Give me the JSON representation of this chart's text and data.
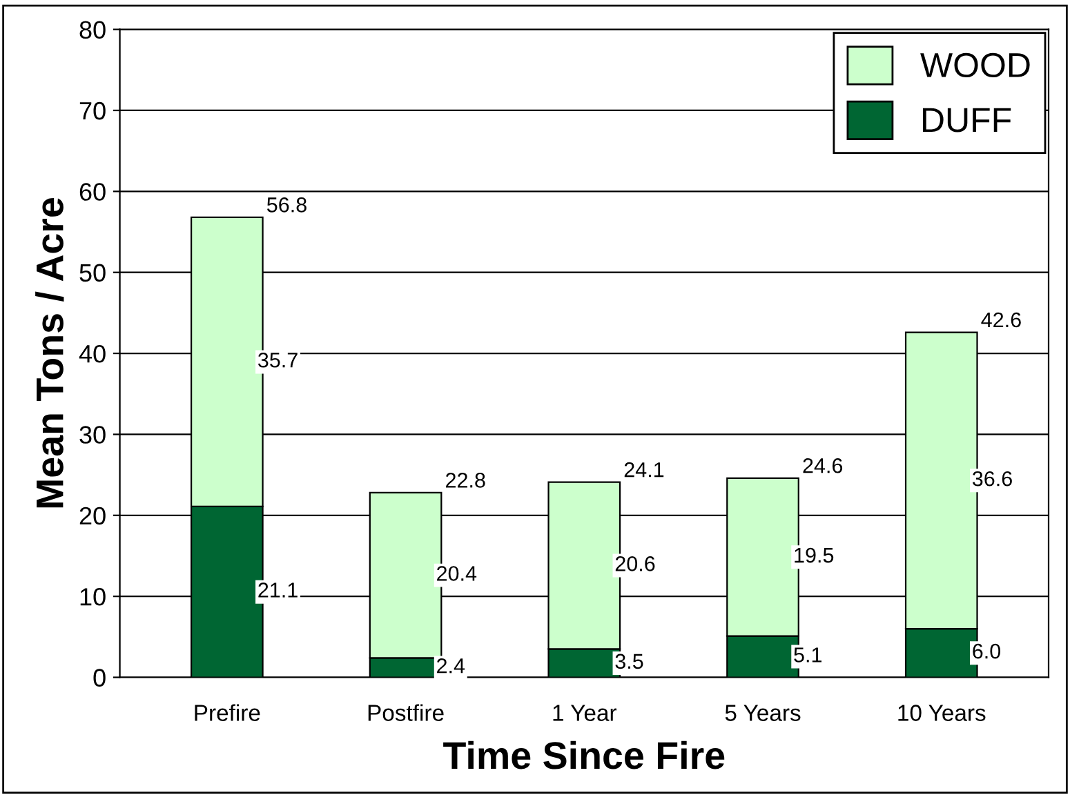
{
  "chart_data": {
    "type": "bar",
    "stacked": true,
    "xlabel": "Time Since Fire",
    "ylabel": "Mean Tons / Acre",
    "categories": [
      "Prefire",
      "Postfire",
      "1 Year",
      "5 Years",
      "10 Years"
    ],
    "series": [
      {
        "name": "DUFF",
        "color": "#006633",
        "values": [
          21.1,
          2.4,
          3.5,
          5.1,
          6.0
        ],
        "value_labels": [
          "21.1",
          "2.4",
          "3.5",
          "5.1",
          "6.0"
        ]
      },
      {
        "name": "WOOD",
        "color": "#ccffcc",
        "values": [
          35.7,
          20.4,
          20.6,
          19.5,
          36.6
        ],
        "value_labels": [
          "35.7",
          "20.4",
          "20.6",
          "19.5",
          "36.6"
        ]
      }
    ],
    "totals": [
      "56.8",
      "22.8",
      "24.1",
      "24.6",
      "42.6"
    ],
    "ylim": [
      0,
      80
    ],
    "yticks": [
      0,
      10,
      20,
      30,
      40,
      50,
      60,
      70,
      80
    ],
    "grid": "y",
    "legend": "top right"
  }
}
